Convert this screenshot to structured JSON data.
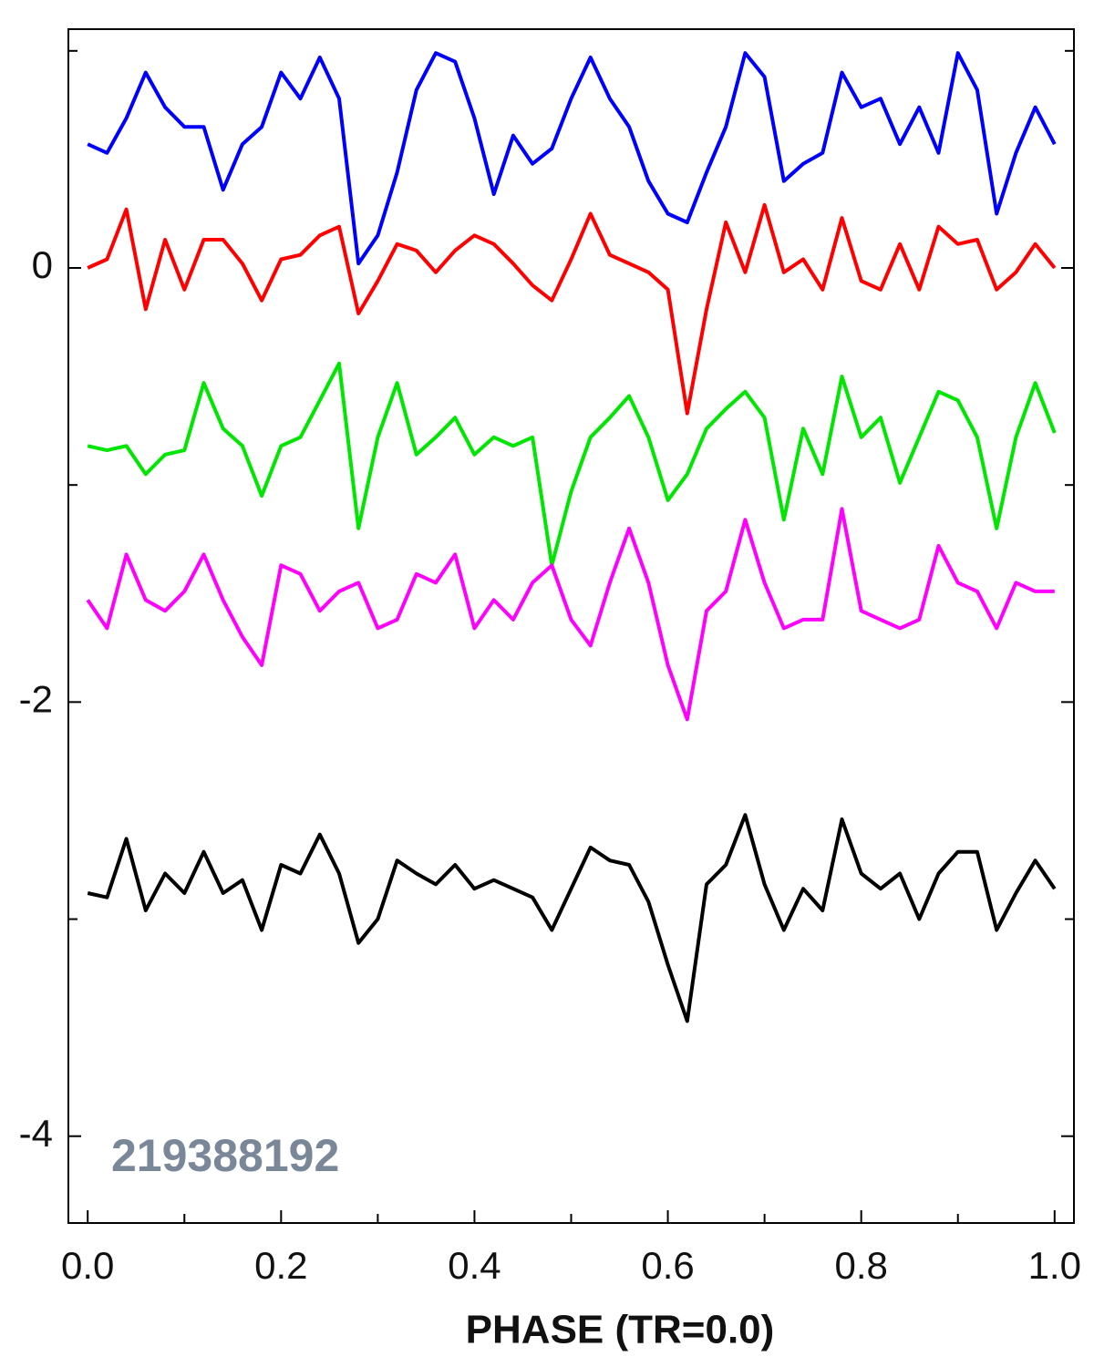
{
  "chart_data": {
    "type": "line",
    "xlabel": "PHASE (TR=0.0)",
    "annotation": "219388192",
    "x": [
      0,
      0.02,
      0.04,
      0.06,
      0.08,
      0.1,
      0.12,
      0.14,
      0.16,
      0.18,
      0.2,
      0.22,
      0.24,
      0.26,
      0.28,
      0.3,
      0.32,
      0.34,
      0.36,
      0.38,
      0.4,
      0.42,
      0.44,
      0.46,
      0.48,
      0.5,
      0.52,
      0.54,
      0.56,
      0.58,
      0.6,
      0.62,
      0.64,
      0.66,
      0.68,
      0.7,
      0.72,
      0.74,
      0.76,
      0.78,
      0.8,
      0.82,
      0.84,
      0.86,
      0.88,
      0.9,
      0.92,
      0.94,
      0.96,
      0.98,
      1
    ],
    "series": [
      {
        "color": "#0000ff",
        "values": [
          0.57,
          0.53,
          0.69,
          0.9,
          0.74,
          0.65,
          0.65,
          0.36,
          0.57,
          0.65,
          0.9,
          0.78,
          0.97,
          0.78,
          0.02,
          0.15,
          0.44,
          0.82,
          0.99,
          0.95,
          0.69,
          0.34,
          0.61,
          0.48,
          0.55,
          0.78,
          0.97,
          0.78,
          0.65,
          0.4,
          0.25,
          0.21,
          0.44,
          0.65,
          0.99,
          0.88,
          0.4,
          0.48,
          0.53,
          0.9,
          0.74,
          0.78,
          0.57,
          0.74,
          0.53,
          0.99,
          0.82,
          0.25,
          0.53,
          0.74,
          0.57
        ]
      },
      {
        "color": "#ff0000",
        "values": [
          0,
          0.04,
          0.27,
          -0.19,
          0.13,
          -0.1,
          0.13,
          0.13,
          0.02,
          -0.15,
          0.04,
          0.06,
          0.15,
          0.19,
          -0.21,
          -0.06,
          0.11,
          0.08,
          -0.02,
          0.08,
          0.15,
          0.11,
          0.02,
          -0.08,
          -0.15,
          0.04,
          0.25,
          0.06,
          0.02,
          -0.02,
          -0.1,
          -0.67,
          -0.19,
          0.21,
          -0.02,
          0.29,
          -0.02,
          0.04,
          -0.1,
          0.23,
          -0.06,
          -0.1,
          0.11,
          -0.1,
          0.19,
          0.11,
          0.13,
          -0.1,
          -0.02,
          0.11,
          0
        ]
      },
      {
        "color": "#00e600",
        "values": [
          -0.82,
          -0.84,
          -0.82,
          -0.95,
          -0.86,
          -0.84,
          -0.53,
          -0.74,
          -0.82,
          -1.05,
          -0.82,
          -0.78,
          -0.61,
          -0.44,
          -1.2,
          -0.78,
          -0.53,
          -0.86,
          -0.78,
          -0.69,
          -0.86,
          -0.78,
          -0.82,
          -0.78,
          -1.37,
          -1.03,
          -0.78,
          -0.69,
          -0.59,
          -0.78,
          -1.07,
          -0.95,
          -0.74,
          -0.65,
          -0.57,
          -0.69,
          -1.16,
          -0.74,
          -0.95,
          -0.5,
          -0.78,
          -0.69,
          -0.99,
          -0.78,
          -0.57,
          -0.61,
          -0.78,
          -1.2,
          -0.78,
          -0.53,
          -0.76
        ]
      },
      {
        "color": "#ff00ff",
        "values": [
          -1.53,
          -1.66,
          -1.32,
          -1.53,
          -1.58,
          -1.49,
          -1.32,
          -1.53,
          -1.7,
          -1.83,
          -1.37,
          -1.41,
          -1.58,
          -1.49,
          -1.45,
          -1.66,
          -1.62,
          -1.41,
          -1.45,
          -1.32,
          -1.66,
          -1.53,
          -1.62,
          -1.45,
          -1.37,
          -1.62,
          -1.74,
          -1.45,
          -1.2,
          -1.45,
          -1.83,
          -2.08,
          -1.58,
          -1.49,
          -1.16,
          -1.45,
          -1.66,
          -1.62,
          -1.62,
          -1.11,
          -1.58,
          -1.62,
          -1.66,
          -1.62,
          -1.28,
          -1.45,
          -1.49,
          -1.66,
          -1.45,
          -1.49,
          -1.49
        ]
      },
      {
        "color": "#000000",
        "values": [
          -2.88,
          -2.9,
          -2.63,
          -2.96,
          -2.79,
          -2.88,
          -2.69,
          -2.88,
          -2.82,
          -3.05,
          -2.75,
          -2.79,
          -2.61,
          -2.79,
          -3.11,
          -3.0,
          -2.73,
          -2.79,
          -2.84,
          -2.75,
          -2.86,
          -2.82,
          -2.86,
          -2.9,
          -3.05,
          -2.86,
          -2.67,
          -2.73,
          -2.75,
          -2.92,
          -3.21,
          -3.47,
          -2.84,
          -2.75,
          -2.52,
          -2.84,
          -3.05,
          -2.86,
          -2.96,
          -2.54,
          -2.79,
          -2.86,
          -2.79,
          -3.0,
          -2.79,
          -2.69,
          -2.69,
          -3.05,
          -2.88,
          -2.73,
          -2.86
        ]
      }
    ],
    "xlim": [
      -0.02,
      1.02
    ],
    "ylim": [
      -4.4,
      1.1
    ],
    "xticks": [
      {
        "value": 0,
        "label": "0.0"
      },
      0.2,
      0.4,
      0.6,
      0.8,
      {
        "value": 1,
        "label": "1.0"
      }
    ],
    "xticks_minor": [
      0.1,
      0.3,
      0.5,
      0.7,
      0.9
    ],
    "yticks": [
      -4,
      -2,
      0
    ],
    "yticks_minor": [
      -3,
      -1,
      1
    ],
    "grid": false
  }
}
